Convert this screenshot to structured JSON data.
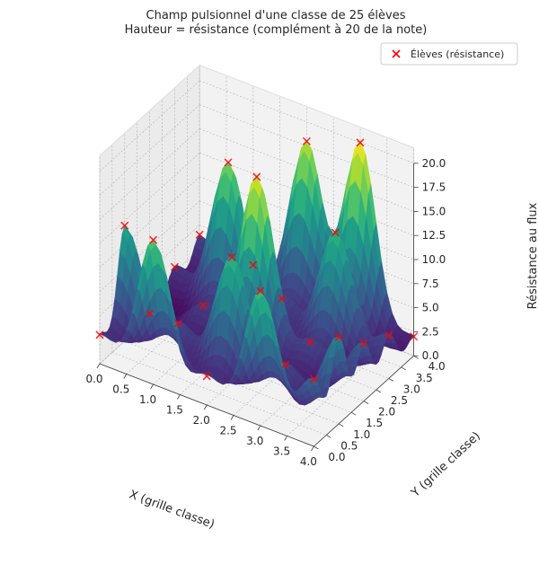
{
  "chart_data": {
    "type": "surface3d",
    "title_line1": "Champ pulsionnel d'une classe de 25 élèves",
    "title_line2": "Hauteur = résistance (complément à 20 de la note)",
    "xlabel": "X (grille classe)",
    "ylabel": "Y (grille classe)",
    "zlabel": "Résistance au flux",
    "xlim": [
      0,
      4
    ],
    "ylim": [
      0,
      4
    ],
    "zlim": [
      0,
      20
    ],
    "x_ticks": [
      "0.0",
      "0.5",
      "1.0",
      "1.5",
      "2.0",
      "2.5",
      "3.0",
      "3.5",
      "4.0"
    ],
    "y_ticks": [
      "0.0",
      "0.5",
      "1.0",
      "1.5",
      "2.0",
      "2.5",
      "3.0",
      "3.5",
      "4.0"
    ],
    "z_ticks": [
      "0.0",
      "2.5",
      "5.0",
      "7.5",
      "10.0",
      "12.5",
      "15.0",
      "17.5",
      "20.0"
    ],
    "grid": true,
    "colormap": "viridis",
    "legend": {
      "position": "top-right",
      "label": "Élèves (résistance)",
      "marker": "x",
      "marker_color": "#ff0000"
    },
    "students": {
      "x": [
        0,
        1,
        2,
        3,
        4,
        0,
        1,
        2,
        3,
        4,
        0,
        1,
        2,
        3,
        4,
        0,
        1,
        2,
        3,
        4,
        0,
        1,
        2,
        3,
        4
      ],
      "y": [
        0,
        0,
        0,
        0,
        0,
        1,
        1,
        1,
        1,
        1,
        2,
        2,
        2,
        2,
        2,
        3,
        3,
        3,
        3,
        3,
        4,
        4,
        4,
        4,
        4
      ],
      "resistance": [
        3.0,
        15.0,
        3.0,
        14.0,
        7.0,
        12.0,
        4.0,
        13.0,
        4.0,
        9.0,
        0.5,
        3.5,
        19.0,
        4.0,
        6.0,
        3.0,
        16.0,
        4.0,
        13.0,
        4.5,
        4.0,
        3.0,
        18.0,
        20.0,
        2.0
      ]
    }
  }
}
